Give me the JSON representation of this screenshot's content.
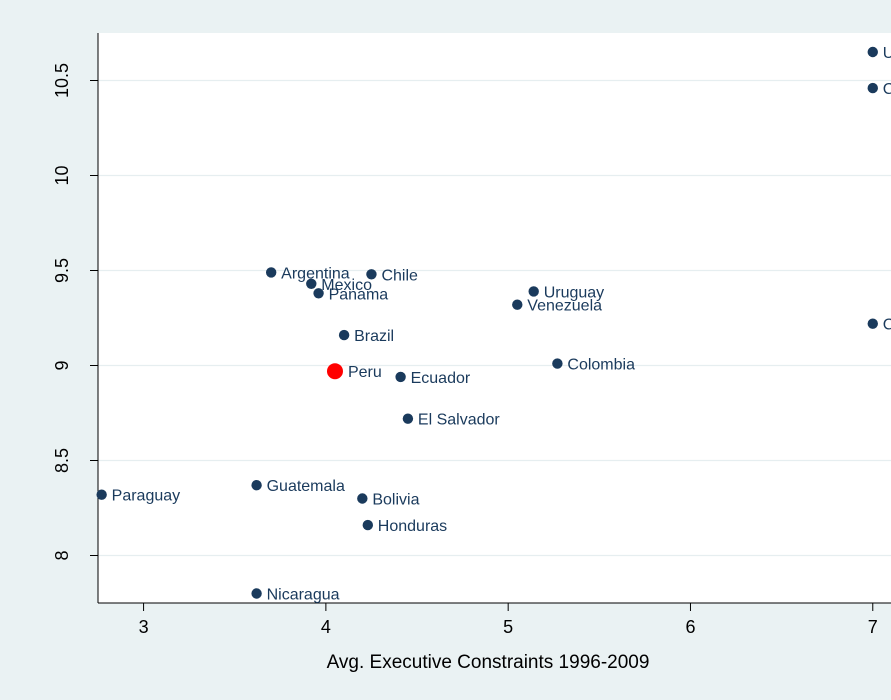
{
  "chart_data": {
    "type": "scatter",
    "title": "",
    "xlabel": "Avg. Executive Constraints 1996-2009",
    "ylabel": "",
    "xlim": [
      2.75,
      7.1
    ],
    "ylim": [
      7.75,
      10.75
    ],
    "xticks": [
      3,
      4,
      5,
      6,
      7
    ],
    "yticks": [
      8,
      8.5,
      9,
      9.5,
      10,
      10.5
    ],
    "xtick_labels": [
      "3",
      "4",
      "5",
      "6",
      "7"
    ],
    "ytick_labels": [
      "8",
      "8.5",
      "9",
      "9.5",
      "10",
      "10.5"
    ],
    "grid": "horizontal",
    "legend": "none",
    "colors": {
      "point": "#1a3a5c",
      "highlight": "#ff0000",
      "grid": "#e6eef0",
      "axis": "#000000",
      "text": "#1a3a5c",
      "plot_bg": "#ffffff",
      "frame_bg": "#eaf2f3"
    },
    "points": [
      {
        "label": "Un",
        "x": 7.0,
        "y": 10.65
      },
      {
        "label": "Ca",
        "x": 7.0,
        "y": 10.46
      },
      {
        "label": "Argentina",
        "x": 3.7,
        "y": 9.49
      },
      {
        "label": "Chile",
        "x": 4.25,
        "y": 9.48
      },
      {
        "label": "Mexico",
        "x": 3.92,
        "y": 9.43
      },
      {
        "label": "Panama",
        "x": 3.96,
        "y": 9.38
      },
      {
        "label": "Uruguay",
        "x": 5.14,
        "y": 9.39
      },
      {
        "label": "Venezuela",
        "x": 5.05,
        "y": 9.32
      },
      {
        "label": "Co",
        "x": 7.0,
        "y": 9.22
      },
      {
        "label": "Brazil",
        "x": 4.1,
        "y": 9.16
      },
      {
        "label": "Colombia",
        "x": 5.27,
        "y": 9.01
      },
      {
        "label": "Peru",
        "x": 4.05,
        "y": 8.97,
        "highlight": true
      },
      {
        "label": "Ecuador",
        "x": 4.41,
        "y": 8.94
      },
      {
        "label": "El Salvador",
        "x": 4.45,
        "y": 8.72
      },
      {
        "label": "Paraguay",
        "x": 2.77,
        "y": 8.32
      },
      {
        "label": "Guatemala",
        "x": 3.62,
        "y": 8.37
      },
      {
        "label": "Bolivia",
        "x": 4.2,
        "y": 8.3
      },
      {
        "label": "Honduras",
        "x": 4.23,
        "y": 8.16
      },
      {
        "label": "Nicaragua",
        "x": 3.62,
        "y": 7.8
      }
    ]
  }
}
